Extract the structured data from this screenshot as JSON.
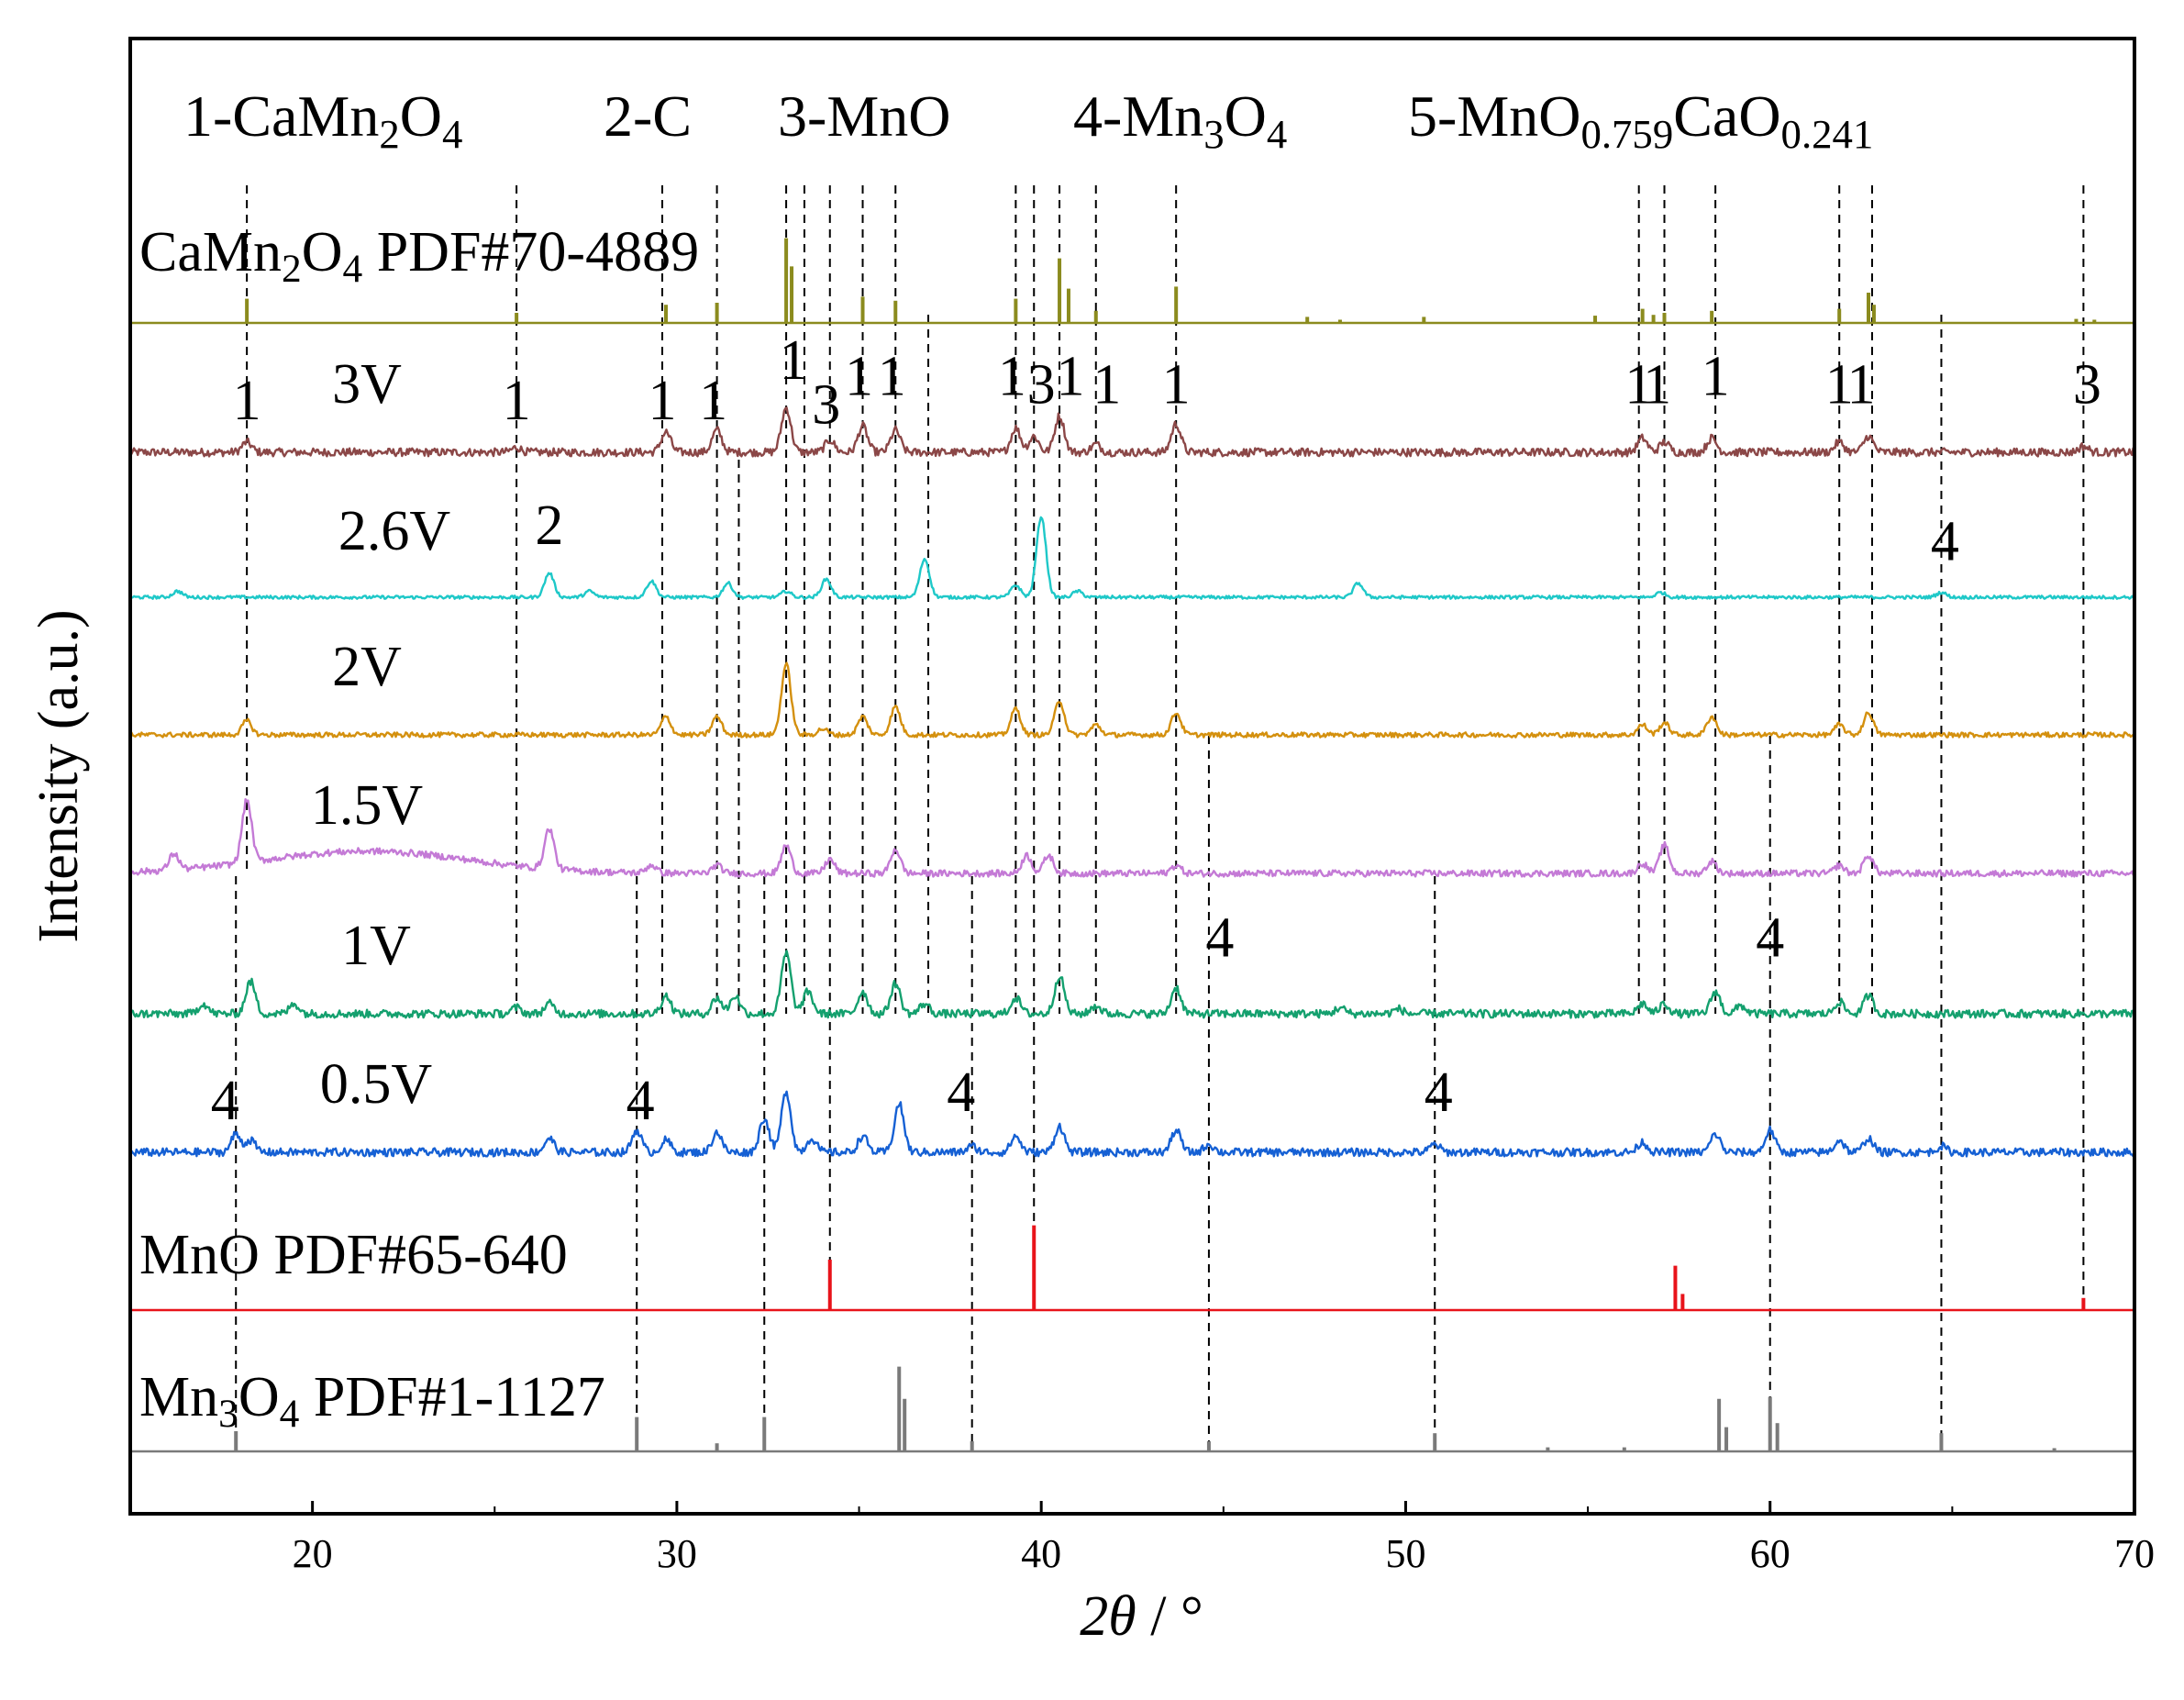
{
  "chart_data": {
    "type": "line",
    "title": "",
    "xlabel": "2θ / °",
    "ylabel": "Intensity (a.u.)",
    "xlim": [
      15,
      70
    ],
    "xticks": [
      20,
      30,
      40,
      50,
      60,
      70
    ],
    "legend": {
      "placement": "top",
      "entries": [
        {
          "num": "1-",
          "parts": [
            [
              "CaMn",
              "n"
            ],
            [
              "2",
              "sub"
            ],
            [
              "O",
              "n"
            ],
            [
              "4",
              "sub"
            ]
          ]
        },
        {
          "num": "2-",
          "parts": [
            [
              "C",
              "n"
            ]
          ]
        },
        {
          "num": "3-",
          "parts": [
            [
              "MnO",
              "n"
            ]
          ]
        },
        {
          "num": "4-",
          "parts": [
            [
              "Mn",
              "n"
            ],
            [
              "3",
              "sub"
            ],
            [
              "O",
              "n"
            ],
            [
              "4",
              "sub"
            ]
          ]
        },
        {
          "num": "5-",
          "parts": [
            [
              "MnO",
              "n"
            ],
            [
              "0.759",
              "sub"
            ],
            [
              "CaO",
              "n"
            ],
            [
              "0.241",
              "sub"
            ]
          ]
        }
      ]
    },
    "references": [
      {
        "label_parts": [
          [
            "CaMn",
            "n"
          ],
          [
            "2",
            "sub"
          ],
          [
            "O",
            "n"
          ],
          [
            "4",
            "sub"
          ],
          [
            " PDF#70-4889",
            "n"
          ]
        ],
        "color": "#8b8b1e",
        "baseline": 1.0,
        "peaks": [
          [
            18.2,
            0.6
          ],
          [
            25.6,
            0.25
          ],
          [
            29.7,
            0.45
          ],
          [
            31.1,
            0.5
          ],
          [
            33.0,
            2.1
          ],
          [
            33.15,
            1.4
          ],
          [
            35.1,
            0.65
          ],
          [
            36.0,
            0.55
          ],
          [
            39.3,
            0.6
          ],
          [
            40.5,
            1.6
          ],
          [
            40.75,
            0.85
          ],
          [
            41.5,
            0.3
          ],
          [
            43.7,
            0.9
          ],
          [
            47.3,
            0.15
          ],
          [
            48.2,
            0.08
          ],
          [
            50.5,
            0.15
          ],
          [
            55.2,
            0.18
          ],
          [
            56.5,
            0.35
          ],
          [
            56.8,
            0.2
          ],
          [
            57.1,
            0.25
          ],
          [
            58.4,
            0.3
          ],
          [
            61.9,
            0.35
          ],
          [
            62.7,
            0.75
          ],
          [
            62.85,
            0.45
          ],
          [
            68.4,
            0.1
          ],
          [
            68.9,
            0.08
          ]
        ]
      },
      {
        "label_parts": [
          [
            "MnO PDF#65-640",
            "n"
          ]
        ],
        "color": "#e8131a",
        "baseline": 0.0,
        "peaks": [
          [
            34.2,
            1.25
          ],
          [
            39.8,
            2.1
          ],
          [
            57.4,
            1.1
          ],
          [
            57.6,
            0.4
          ],
          [
            68.6,
            0.3
          ]
        ]
      },
      {
        "label_parts": [
          [
            "Mn",
            "n"
          ],
          [
            "3",
            "sub"
          ],
          [
            "O",
            "n"
          ],
          [
            "4",
            "sub"
          ],
          [
            " PDF#1-1127",
            "n"
          ]
        ],
        "color": "#7a7a7a",
        "baseline": 0.0,
        "peaks": [
          [
            17.9,
            0.5
          ],
          [
            28.9,
            0.85
          ],
          [
            31.1,
            0.2
          ],
          [
            32.4,
            0.85
          ],
          [
            36.1,
            2.1
          ],
          [
            36.25,
            1.3
          ],
          [
            38.1,
            0.25
          ],
          [
            44.6,
            0.25
          ],
          [
            50.8,
            0.45
          ],
          [
            53.9,
            0.1
          ],
          [
            56.0,
            0.1
          ],
          [
            58.6,
            1.3
          ],
          [
            58.8,
            0.6
          ],
          [
            60.0,
            1.35
          ],
          [
            60.2,
            0.7
          ],
          [
            64.7,
            0.45
          ],
          [
            67.8,
            0.08
          ]
        ]
      }
    ],
    "series": [
      {
        "name": "3V",
        "color": "#8b4747",
        "noise": 0.1,
        "peaks": [
          [
            18.2,
            0.25
          ],
          [
            25.6,
            0.12
          ],
          [
            29.7,
            0.5
          ],
          [
            31.1,
            0.55
          ],
          [
            33.0,
            1.1
          ],
          [
            34.2,
            0.3
          ],
          [
            35.1,
            0.65
          ],
          [
            36.0,
            0.55
          ],
          [
            39.3,
            0.6
          ],
          [
            39.8,
            0.4
          ],
          [
            40.5,
            0.9
          ],
          [
            41.5,
            0.2
          ],
          [
            43.7,
            0.7
          ],
          [
            56.5,
            0.35
          ],
          [
            57.1,
            0.25
          ],
          [
            58.4,
            0.35
          ],
          [
            61.9,
            0.25
          ],
          [
            62.7,
            0.4
          ],
          [
            68.6,
            0.15
          ]
        ]
      },
      {
        "name": "2.6V",
        "color": "#1ec8c8",
        "noise": 0.04,
        "peaks": [
          [
            16.3,
            0.15
          ],
          [
            26.5,
            0.6
          ],
          [
            27.6,
            0.15
          ],
          [
            29.3,
            0.4
          ],
          [
            31.4,
            0.35
          ],
          [
            33.0,
            0.15
          ],
          [
            34.1,
            0.45
          ],
          [
            36.8,
            0.95
          ],
          [
            39.3,
            0.3
          ],
          [
            40.0,
            2.0
          ],
          [
            41.0,
            0.15
          ],
          [
            48.7,
            0.35
          ],
          [
            57.0,
            0.12
          ],
          [
            64.7,
            0.12
          ]
        ]
      },
      {
        "name": "2V",
        "color": "#d4900e",
        "noise": 0.06,
        "peaks": [
          [
            18.2,
            0.35
          ],
          [
            29.7,
            0.45
          ],
          [
            31.1,
            0.45
          ],
          [
            33.0,
            1.75
          ],
          [
            34.0,
            0.15
          ],
          [
            35.1,
            0.45
          ],
          [
            36.0,
            0.7
          ],
          [
            39.3,
            0.65
          ],
          [
            40.5,
            0.85
          ],
          [
            41.5,
            0.25
          ],
          [
            43.7,
            0.55
          ],
          [
            56.5,
            0.25
          ],
          [
            57.1,
            0.3
          ],
          [
            58.4,
            0.45
          ],
          [
            61.9,
            0.25
          ],
          [
            62.7,
            0.55
          ]
        ]
      },
      {
        "name": "1.5V",
        "color": "#c47ad6",
        "noise": 0.08,
        "hump": [
          21.5,
          2.8,
          0.55
        ],
        "peaks": [
          [
            16.2,
            0.4
          ],
          [
            18.2,
            1.55
          ],
          [
            26.5,
            1.0
          ],
          [
            29.3,
            0.2
          ],
          [
            31.1,
            0.2
          ],
          [
            33.0,
            0.7
          ],
          [
            34.2,
            0.35
          ],
          [
            36.0,
            0.6
          ],
          [
            39.6,
            0.45
          ],
          [
            40.2,
            0.45
          ],
          [
            43.7,
            0.2
          ],
          [
            56.5,
            0.25
          ],
          [
            57.1,
            0.7
          ],
          [
            58.4,
            0.3
          ],
          [
            61.9,
            0.2
          ],
          [
            62.7,
            0.45
          ]
        ]
      },
      {
        "name": "1V",
        "color": "#14a06e",
        "noise": 0.1,
        "peaks": [
          [
            17.0,
            0.25
          ],
          [
            18.3,
            0.8
          ],
          [
            19.5,
            0.25
          ],
          [
            25.6,
            0.15
          ],
          [
            26.5,
            0.25
          ],
          [
            29.7,
            0.45
          ],
          [
            31.1,
            0.4
          ],
          [
            31.6,
            0.45
          ],
          [
            33.0,
            1.5
          ],
          [
            33.6,
            0.55
          ],
          [
            35.1,
            0.55
          ],
          [
            36.0,
            0.75
          ],
          [
            36.8,
            0.25
          ],
          [
            39.3,
            0.4
          ],
          [
            40.5,
            0.95
          ],
          [
            41.5,
            0.2
          ],
          [
            43.7,
            0.65
          ],
          [
            48.2,
            0.15
          ],
          [
            49.8,
            0.12
          ],
          [
            56.5,
            0.25
          ],
          [
            57.1,
            0.25
          ],
          [
            58.5,
            0.55
          ],
          [
            59.2,
            0.2
          ],
          [
            61.9,
            0.3
          ],
          [
            62.7,
            0.45
          ]
        ]
      },
      {
        "name": "0.5V",
        "color": "#1560d4",
        "noise": 0.1,
        "peaks": [
          [
            17.9,
            0.45
          ],
          [
            18.3,
            0.3
          ],
          [
            26.5,
            0.35
          ],
          [
            28.9,
            0.55
          ],
          [
            29.7,
            0.3
          ],
          [
            31.1,
            0.5
          ],
          [
            32.4,
            0.85
          ],
          [
            33.0,
            1.5
          ],
          [
            33.7,
            0.35
          ],
          [
            35.1,
            0.4
          ],
          [
            36.1,
            1.2
          ],
          [
            38.1,
            0.15
          ],
          [
            39.3,
            0.4
          ],
          [
            40.5,
            0.65
          ],
          [
            43.7,
            0.55
          ],
          [
            44.6,
            0.2
          ],
          [
            50.8,
            0.2
          ],
          [
            56.5,
            0.25
          ],
          [
            58.5,
            0.45
          ],
          [
            60.0,
            0.55
          ],
          [
            61.9,
            0.3
          ],
          [
            62.7,
            0.35
          ],
          [
            64.7,
            0.15
          ]
        ]
      }
    ],
    "peak_labels": [
      {
        "text": "1",
        "x": 18.2,
        "row": 0
      },
      {
        "text": "1",
        "x": 25.6,
        "row": 0
      },
      {
        "text": "1",
        "x": 29.6,
        "row": 0
      },
      {
        "text": "1",
        "x": 31.0,
        "row": 0
      },
      {
        "text": "1",
        "x": 33.2,
        "row": 0,
        "dy": -1
      },
      {
        "text": "3",
        "x": 34.1,
        "row": 0,
        "dy": 0.1
      },
      {
        "text": "1",
        "x": 35.0,
        "row": 0,
        "dy": -0.6
      },
      {
        "text": "1",
        "x": 35.9,
        "row": 0,
        "dy": -0.6
      },
      {
        "text": "1",
        "x": 39.2,
        "row": 0,
        "dy": -0.6
      },
      {
        "text": "3",
        "x": 40.0,
        "row": 0,
        "dy": -0.4
      },
      {
        "text": "1",
        "x": 40.8,
        "row": 0,
        "dy": -0.6
      },
      {
        "text": "1",
        "x": 41.8,
        "row": 0,
        "dy": -0.4
      },
      {
        "text": "1",
        "x": 43.7,
        "row": 0,
        "dy": -0.4
      },
      {
        "text": "1",
        "x": 56.4,
        "row": 0,
        "dy": -0.4
      },
      {
        "text": "1",
        "x": 56.9,
        "row": 0,
        "dy": -0.4
      },
      {
        "text": "1",
        "x": 58.5,
        "row": 0,
        "dy": -0.6
      },
      {
        "text": "1",
        "x": 61.9,
        "row": 0,
        "dy": -0.4
      },
      {
        "text": "1",
        "x": 62.5,
        "row": 0,
        "dy": -0.4
      },
      {
        "text": "3",
        "x": 68.7,
        "row": 0,
        "dy": -0.4
      },
      {
        "text": "2",
        "x": 26.5,
        "row": 1,
        "dy": -0.5
      },
      {
        "text": "4",
        "x": 64.8,
        "row": 1,
        "dy": -0.1
      },
      {
        "text": "4",
        "x": 44.9,
        "row": 4,
        "dy": -0.6
      },
      {
        "text": "4",
        "x": 60.0,
        "row": 4,
        "dy": -0.6
      },
      {
        "text": "4",
        "x": 17.6,
        "row": 5
      },
      {
        "text": "4",
        "x": 29.0,
        "row": 5
      },
      {
        "text": "4",
        "x": 37.8,
        "row": 5,
        "dy": -0.2
      },
      {
        "text": "4",
        "x": 50.9,
        "row": 5,
        "dy": -0.2
      }
    ],
    "dashed_lines": [
      {
        "x": 18.2,
        "from": 0,
        "to": 4
      },
      {
        "x": 25.6,
        "from": 0,
        "to": 5
      },
      {
        "x": 29.6,
        "from": 0,
        "to": 5
      },
      {
        "x": 31.1,
        "from": 0,
        "to": 5
      },
      {
        "x": 31.7,
        "from": 2,
        "to": 5
      },
      {
        "x": 33.0,
        "from": 0,
        "to": 5
      },
      {
        "x": 33.5,
        "from": 0,
        "to": 5
      },
      {
        "x": 34.2,
        "from": 0,
        "to": 7
      },
      {
        "x": 35.1,
        "from": 0,
        "to": 5
      },
      {
        "x": 36.0,
        "from": 0,
        "to": 5
      },
      {
        "x": 36.9,
        "from": 1,
        "to": 5
      },
      {
        "x": 39.3,
        "from": 0,
        "to": 5
      },
      {
        "x": 39.8,
        "from": 0,
        "to": 7
      },
      {
        "x": 40.5,
        "from": 0,
        "to": 5
      },
      {
        "x": 41.5,
        "from": 0,
        "to": 5
      },
      {
        "x": 43.7,
        "from": 0,
        "to": 5
      },
      {
        "x": 56.4,
        "from": 0,
        "to": 5
      },
      {
        "x": 57.1,
        "from": 0,
        "to": 5
      },
      {
        "x": 58.5,
        "from": 0,
        "to": 5
      },
      {
        "x": 61.9,
        "from": 0,
        "to": 5
      },
      {
        "x": 62.8,
        "from": 0,
        "to": 5
      },
      {
        "x": 68.6,
        "from": 0,
        "to": 7
      },
      {
        "x": 17.9,
        "from": 5,
        "to": 8
      },
      {
        "x": 28.9,
        "from": 5,
        "to": 8
      },
      {
        "x": 32.4,
        "from": 5,
        "to": 8
      },
      {
        "x": 38.1,
        "from": 5,
        "to": 8
      },
      {
        "x": 44.6,
        "from": 4,
        "to": 8
      },
      {
        "x": 50.8,
        "from": 5,
        "to": 8
      },
      {
        "x": 60.0,
        "from": 4,
        "to": 8
      },
      {
        "x": 64.7,
        "from": 1,
        "to": 8
      }
    ]
  }
}
